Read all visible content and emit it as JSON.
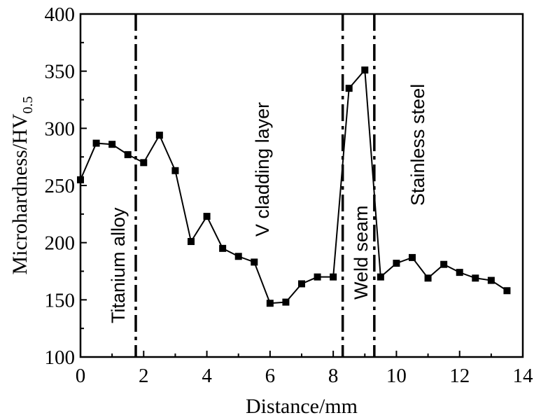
{
  "chart_data": {
    "type": "line",
    "xlabel": "Distance/mm",
    "ylabel": "Microhardness/HV",
    "ylabel_subscript": "0.5",
    "xlim": [
      0,
      14
    ],
    "ylim": [
      100,
      400
    ],
    "xticks": [
      "0",
      "2",
      "4",
      "6",
      "8",
      "10",
      "12",
      "14"
    ],
    "yticks": [
      "100",
      "150",
      "200",
      "250",
      "300",
      "350",
      "400"
    ],
    "grid": false,
    "series": [
      {
        "marker": "square",
        "color": "#000000",
        "x": [
          0,
          0.5,
          1.0,
          1.5,
          2.0,
          2.5,
          3.0,
          3.5,
          4.0,
          4.5,
          5.0,
          5.5,
          6.0,
          6.5,
          7.0,
          7.5,
          8.0,
          8.5,
          9.0,
          9.5,
          10.0,
          10.5,
          11.0,
          11.5,
          12.0,
          12.5,
          13.0,
          13.5
        ],
        "y": [
          255,
          287,
          286,
          277,
          270,
          294,
          263,
          201,
          223,
          195,
          188,
          183,
          147,
          148,
          164,
          170,
          170,
          335,
          351,
          170,
          182,
          187,
          169,
          181,
          174,
          169,
          167,
          158
        ]
      }
    ],
    "boundaries": [
      1.75,
      8.3,
      9.3
    ],
    "regions": [
      {
        "label": "Titanium alloy"
      },
      {
        "label": "V cladding layer"
      },
      {
        "label": "Weld seam"
      },
      {
        "label": "Stainless steel"
      }
    ]
  }
}
